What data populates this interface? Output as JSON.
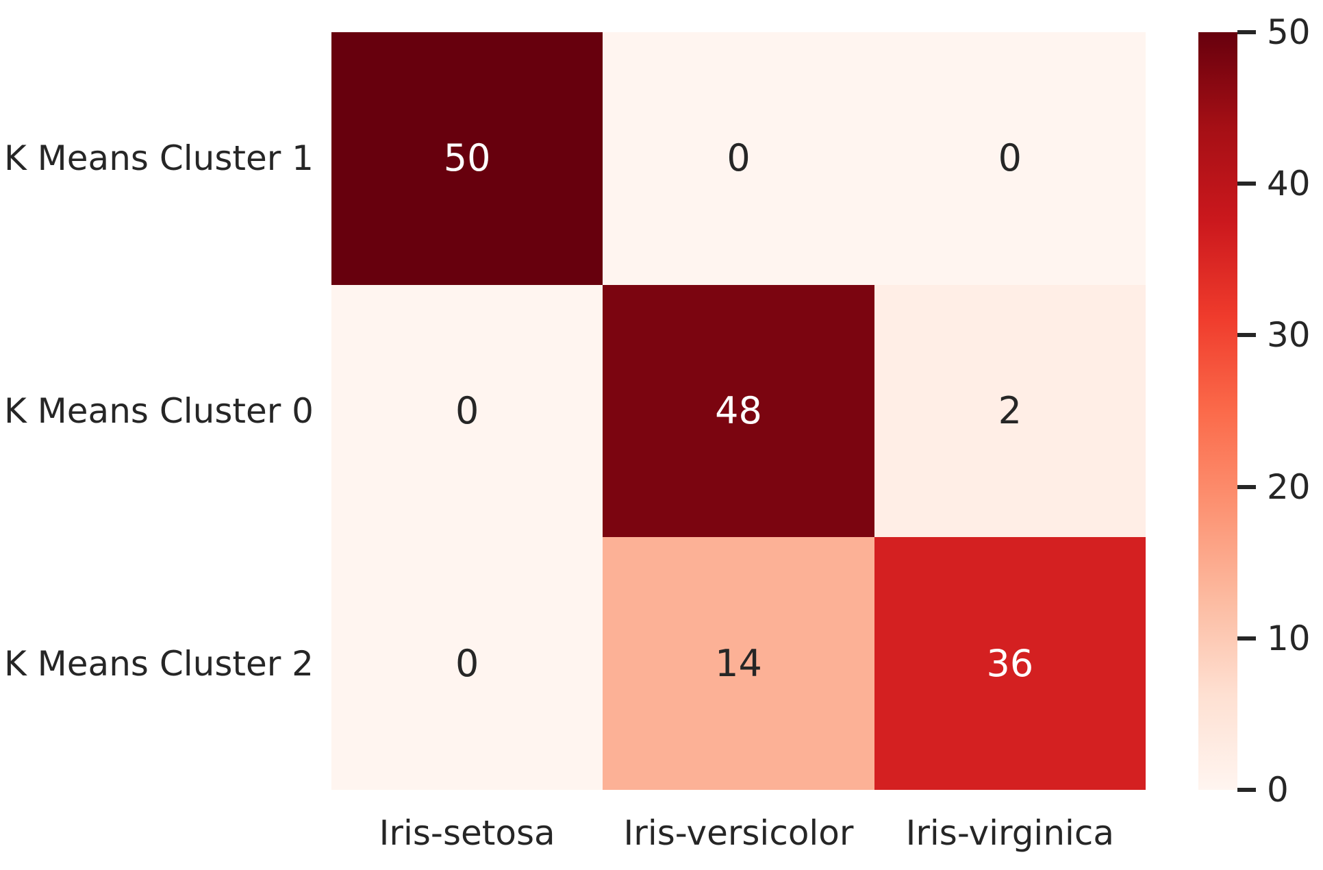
{
  "chart_data": {
    "type": "heatmap",
    "title": "",
    "rows": [
      "K Means Cluster 1",
      "K Means Cluster 0",
      "K Means Cluster 2"
    ],
    "columns": [
      "Iris-setosa",
      "Iris-versicolor",
      "Iris-virginica"
    ],
    "values": [
      [
        50,
        0,
        0
      ],
      [
        0,
        48,
        2
      ],
      [
        0,
        14,
        36
      ]
    ],
    "vmin": 0,
    "vmax": 50,
    "colormap": "Reds",
    "grid": false,
    "legend_position": "right-colorbar",
    "colorbar_ticks": [
      0,
      10,
      20,
      30,
      40,
      50
    ],
    "colormap_stops": [
      {
        "pos": 0.0,
        "color": "#fff5f0"
      },
      {
        "pos": 0.125,
        "color": "#fee0d2"
      },
      {
        "pos": 0.25,
        "color": "#fcbba1"
      },
      {
        "pos": 0.375,
        "color": "#fc9272"
      },
      {
        "pos": 0.5,
        "color": "#fb6a4a"
      },
      {
        "pos": 0.625,
        "color": "#ef3b2c"
      },
      {
        "pos": 0.75,
        "color": "#cb181d"
      },
      {
        "pos": 0.875,
        "color": "#a50f15"
      },
      {
        "pos": 1.0,
        "color": "#67000d"
      }
    ],
    "annotation_light_color": "#ffffff",
    "annotation_dark_color": "#262626",
    "tick_label_color": "#262626"
  }
}
